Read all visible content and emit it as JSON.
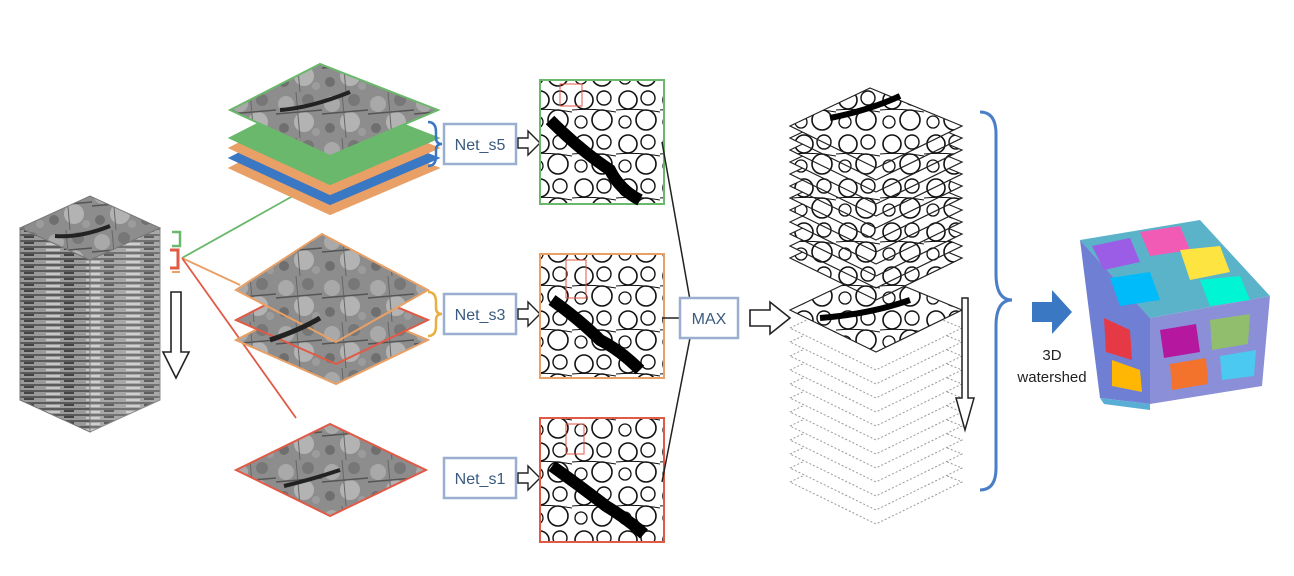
{
  "diagram": {
    "networks": [
      {
        "label": "Net_s5",
        "scale_color": "#6ab86b"
      },
      {
        "label": "Net_s3",
        "scale_color": "#e8a066"
      },
      {
        "label": "Net_s1",
        "scale_color": "#e05a45"
      }
    ],
    "merge_op": "MAX",
    "final_step": {
      "line1": "3D",
      "line2": "watershed"
    },
    "colors": {
      "green": "#6ab86b",
      "orange": "#e8a066",
      "red": "#e05a45",
      "blue": "#3b78c4",
      "box_border": "#9aaed0",
      "brace": "#4a7fc8"
    },
    "icons": [
      "down-arrow-icon",
      "right-arrow-icon",
      "blue-arrow-icon",
      "brace-icon"
    ]
  }
}
